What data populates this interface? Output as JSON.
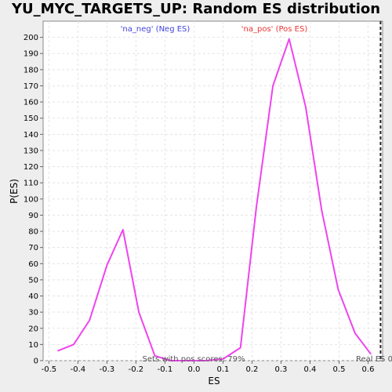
{
  "chart_data": {
    "type": "line",
    "title": "YU_MYC_TARGETS_UP: Random ES distribution",
    "xlabel": "ES",
    "ylabel": "P(ES)",
    "xlim": [
      -0.52,
      0.65
    ],
    "ylim": [
      0,
      210
    ],
    "xticks": [
      -0.5,
      -0.4,
      -0.3,
      -0.2,
      -0.1,
      0.0,
      0.1,
      0.2,
      0.3,
      0.4,
      0.5,
      0.6
    ],
    "xtick_labels": [
      "-0.5",
      "-0.4",
      "-0.3",
      "-0.2",
      "-0.1",
      "0.0",
      "0.1",
      "0.2",
      "0.3",
      "0.4",
      "0.5",
      "0.6"
    ],
    "yticks": [
      0,
      10,
      20,
      30,
      40,
      50,
      60,
      70,
      80,
      90,
      100,
      110,
      120,
      130,
      140,
      150,
      160,
      170,
      180,
      190,
      200
    ],
    "grid": true,
    "series": [
      {
        "color": "#ee44ee",
        "x": [
          -0.47,
          -0.415,
          -0.36,
          -0.3,
          -0.245,
          -0.19,
          -0.135,
          -0.08,
          -0.02,
          0.04,
          0.1,
          0.16,
          0.215,
          0.272,
          0.328,
          0.385,
          0.44,
          0.497,
          0.555,
          0.61
        ],
        "y": [
          6,
          10,
          25,
          59,
          81,
          30,
          3,
          0,
          0,
          0,
          1,
          8,
          95,
          170,
          199,
          157,
          93,
          44,
          17,
          4
        ]
      }
    ],
    "legend": {
      "neg_label": "'na_neg' (Neg ES)",
      "neg_color": "#4444dd",
      "pos_label": "'na_pos' (Pos ES)",
      "pos_color": "#ee3333"
    },
    "annotations": {
      "sets_with_pos": "Sets with pos scores: 79%",
      "real_es_label": "Real ES 0",
      "real_es_x": 0.643
    }
  }
}
